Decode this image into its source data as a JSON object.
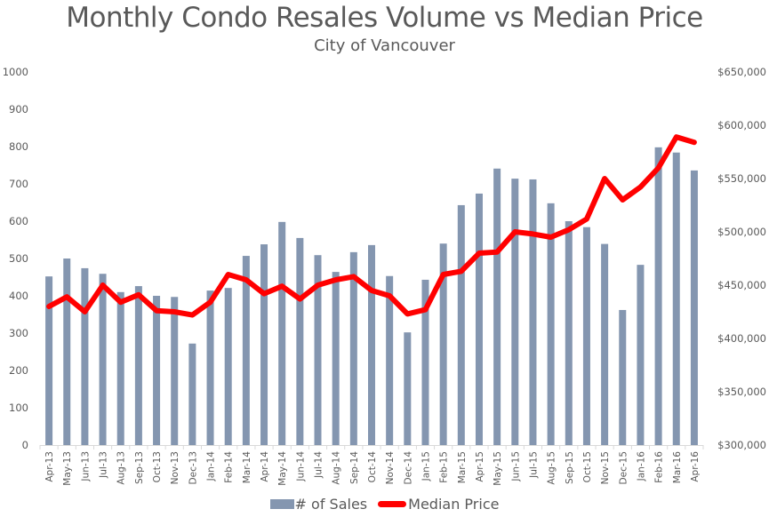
{
  "chart_data": {
    "type": "bar+line",
    "title": "Monthly Condo Resales Volume vs Median Price",
    "subtitle": "City of Vancouver",
    "categories": [
      "Apr-13",
      "May-13",
      "Jun-13",
      "Jul-13",
      "Aug-13",
      "Sep-13",
      "Oct-13",
      "Nov-13",
      "Dec-13",
      "Jan-14",
      "Feb-14",
      "Mar-14",
      "Apr-14",
      "May-14",
      "Jun-14",
      "Jul-14",
      "Aug-14",
      "Sep-14",
      "Oct-14",
      "Nov-14",
      "Dec-14",
      "Jan-15",
      "Feb-15",
      "Mar-15",
      "Apr-15",
      "May-15",
      "Jun-15",
      "Jul-15",
      "Aug-15",
      "Sep-15",
      "Oct-15",
      "Nov-15",
      "Dec-15",
      "Jan-16",
      "Feb-16",
      "Mar-16",
      "Apr-16"
    ],
    "series": [
      {
        "name": "# of Sales",
        "type": "bar",
        "axis": "left",
        "color": "#8496b0",
        "values": [
          452,
          500,
          474,
          459,
          410,
          426,
          400,
          397,
          272,
          414,
          421,
          507,
          538,
          598,
          555,
          509,
          464,
          517,
          536,
          453,
          302,
          443,
          540,
          643,
          674,
          741,
          714,
          712,
          648,
          600,
          584,
          539,
          362,
          483,
          798,
          784,
          736
        ]
      },
      {
        "name": "Median Price",
        "type": "line",
        "axis": "right",
        "color": "#ff0000",
        "values": [
          430000,
          439000,
          425000,
          450000,
          434000,
          441000,
          426000,
          425000,
          422000,
          434000,
          460000,
          455000,
          442000,
          449000,
          437000,
          450000,
          455000,
          458000,
          445000,
          440000,
          423000,
          427000,
          460000,
          463000,
          480000,
          481000,
          500000,
          498000,
          495000,
          502000,
          512000,
          550000,
          530000,
          542000,
          560000,
          589000,
          584000
        ]
      }
    ],
    "y_left": {
      "min": 0,
      "max": 1000,
      "ticks": [
        "0",
        "100",
        "200",
        "300",
        "400",
        "500",
        "600",
        "700",
        "800",
        "900",
        "1000"
      ]
    },
    "y_right": {
      "min": 300000,
      "max": 650000,
      "ticks": [
        "$300,000",
        "$350,000",
        "$400,000",
        "$450,000",
        "$500,000",
        "$550,000",
        "$600,000",
        "$650,000"
      ]
    },
    "xlabel": "",
    "ylabel": "",
    "grid": false,
    "legend_position": "bottom",
    "legend": [
      "# of Sales",
      "Median Price"
    ]
  }
}
